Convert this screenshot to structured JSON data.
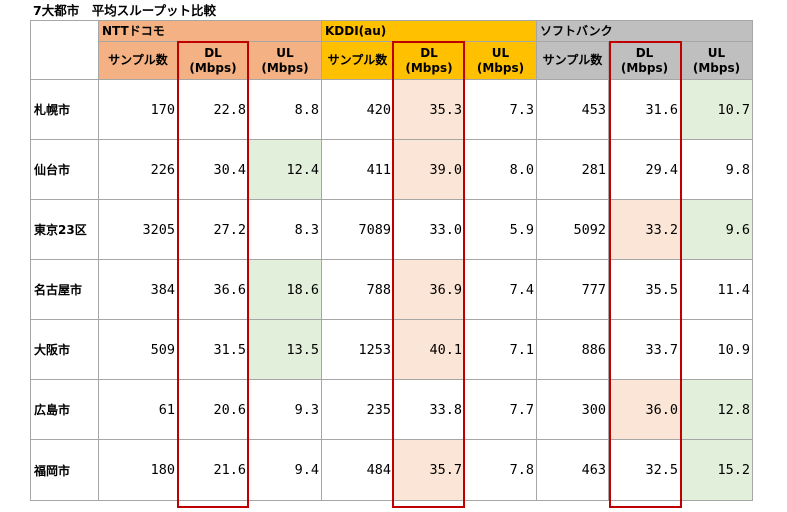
{
  "title": "7大都市　平均スループット比較",
  "colors": {
    "docomo_header": "#f4b183",
    "au_header": "#ffc000",
    "softbank_header": "#bfbfbf",
    "dl_highlight": "#fbe5d6",
    "ul_highlight": "#e2efda",
    "dl_column_frame": "#c00000"
  },
  "carriers": [
    "NTTドコモ",
    "KDDI(au)",
    "ソフトバンク"
  ],
  "subheaders": {
    "samples": "サンプル数",
    "dl_line1": "DL",
    "ul_line1": "UL",
    "unit": "(Mbps)"
  },
  "rows": [
    {
      "city": "札幌市",
      "docomo": {
        "samples": "170",
        "dl": "22.8",
        "ul": "8.8"
      },
      "au": {
        "samples": "420",
        "dl": "35.3",
        "ul": "7.3"
      },
      "softbank": {
        "samples": "453",
        "dl": "31.6",
        "ul": "10.7"
      }
    },
    {
      "city": "仙台市",
      "docomo": {
        "samples": "226",
        "dl": "30.4",
        "ul": "12.4"
      },
      "au": {
        "samples": "411",
        "dl": "39.0",
        "ul": "8.0"
      },
      "softbank": {
        "samples": "281",
        "dl": "29.4",
        "ul": "9.8"
      }
    },
    {
      "city": "東京23区",
      "docomo": {
        "samples": "3205",
        "dl": "27.2",
        "ul": "8.3"
      },
      "au": {
        "samples": "7089",
        "dl": "33.0",
        "ul": "5.9"
      },
      "softbank": {
        "samples": "5092",
        "dl": "33.2",
        "ul": "9.6"
      }
    },
    {
      "city": "名古屋市",
      "docomo": {
        "samples": "384",
        "dl": "36.6",
        "ul": "18.6"
      },
      "au": {
        "samples": "788",
        "dl": "36.9",
        "ul": "7.4"
      },
      "softbank": {
        "samples": "777",
        "dl": "35.5",
        "ul": "11.4"
      }
    },
    {
      "city": "大阪市",
      "docomo": {
        "samples": "509",
        "dl": "31.5",
        "ul": "13.5"
      },
      "au": {
        "samples": "1253",
        "dl": "40.1",
        "ul": "7.1"
      },
      "softbank": {
        "samples": "886",
        "dl": "33.7",
        "ul": "10.9"
      }
    },
    {
      "city": "広島市",
      "docomo": {
        "samples": "61",
        "dl": "20.6",
        "ul": "9.3"
      },
      "au": {
        "samples": "235",
        "dl": "33.8",
        "ul": "7.7"
      },
      "softbank": {
        "samples": "300",
        "dl": "36.0",
        "ul": "12.8"
      }
    },
    {
      "city": "福岡市",
      "docomo": {
        "samples": "180",
        "dl": "21.6",
        "ul": "9.4"
      },
      "au": {
        "samples": "484",
        "dl": "35.7",
        "ul": "7.8"
      },
      "softbank": {
        "samples": "463",
        "dl": "32.5",
        "ul": "15.2"
      }
    }
  ]
}
